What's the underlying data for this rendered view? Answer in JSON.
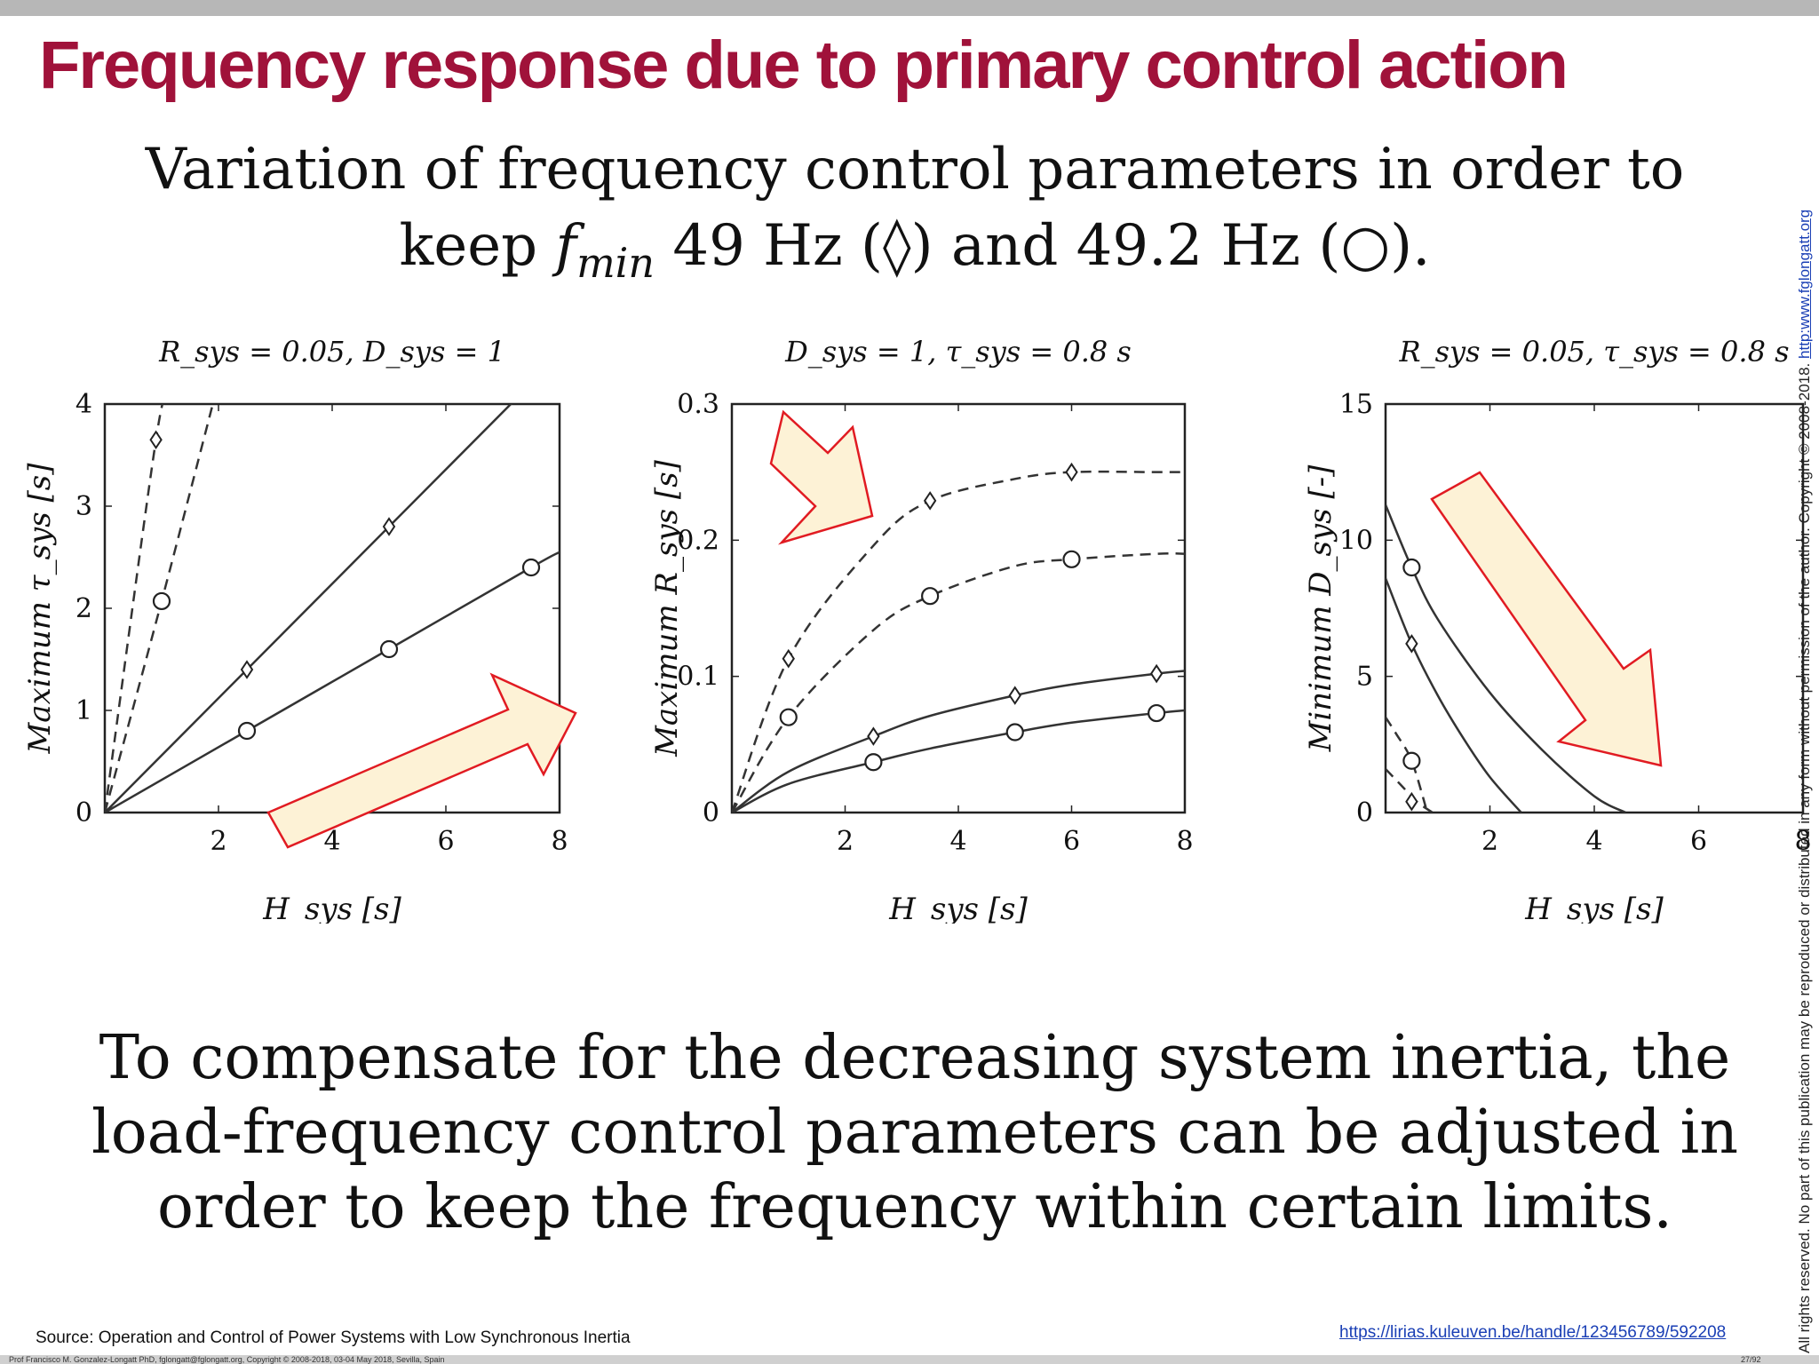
{
  "slide": {
    "title": "Frequency response due to primary control action",
    "subtitle_line1": "Variation of frequency control parameters in order to",
    "subtitle_keep": "keep",
    "subtitle_f": "f",
    "subtitle_sub": "min",
    "subtitle_rest": "49 Hz (◊) and 49.2 Hz (○).",
    "body": "To compensate for the decreasing system inertia, the load-frequency control parameters can be adjusted in order to keep the frequency within certain limits.",
    "source": "Source: Operation and Control of Power Systems with Low Synchronous Inertia",
    "link": "https://lirias.kuleuven.be/handle/123456789/592208",
    "footer": "Prof Francisco M. Gonzalez-Longatt PhD, fglongatt@fglongatt.org, Copyright © 2008-2018, 03-04 May 2018, Sevilla, Spain",
    "page": "27/92",
    "side_note": "All rights reserved. No part of this publication may be reproduced or distributed in any form without permission of the author. Copyright © 2008-2018.",
    "side_link": "http:www.fglongatt.org"
  },
  "colors": {
    "title": "#a0123a",
    "arrow_fill": "#fdf2d6",
    "arrow_stroke": "#e11b22",
    "line": "#333333"
  },
  "chart_data": [
    {
      "type": "line",
      "title": "R_sys = 0.05, D_sys = 1",
      "xlabel": "H_sys [s]",
      "ylabel": "Maximum τ_sys [s]",
      "xlim": [
        0,
        8
      ],
      "ylim": [
        0,
        4
      ],
      "xticks": [
        2,
        4,
        6,
        8
      ],
      "yticks": [
        0,
        1,
        2,
        3,
        4
      ],
      "arrow_direction": "up-right",
      "series": [
        {
          "marker": "diamond",
          "style": "solid",
          "x": [
            0,
            2.5,
            5,
            7.5
          ],
          "y": [
            0,
            1.4,
            2.8,
            4.2
          ]
        },
        {
          "marker": "circle",
          "style": "solid",
          "x": [
            0,
            2.5,
            5,
            7.5,
            8
          ],
          "y": [
            0,
            0.8,
            1.6,
            2.4,
            2.55
          ]
        },
        {
          "marker": "diamond",
          "style": "dashed",
          "x": [
            0,
            0.9,
            1.1
          ],
          "y": [
            0,
            3.65,
            4.0
          ]
        },
        {
          "marker": "circle",
          "style": "dashed",
          "x": [
            0,
            1.0,
            1.9
          ],
          "y": [
            0,
            2.07,
            4.0
          ]
        }
      ],
      "marker_points": [
        {
          "series": 0,
          "x": [
            2.5,
            5
          ],
          "y": [
            1.4,
            2.8
          ]
        },
        {
          "series": 1,
          "x": [
            2.5,
            5,
            7.5
          ],
          "y": [
            0.8,
            1.6,
            2.4
          ]
        },
        {
          "series": 2,
          "x": [
            0.9
          ],
          "y": [
            3.65
          ]
        },
        {
          "series": 3,
          "x": [
            1.0
          ],
          "y": [
            2.07
          ]
        }
      ]
    },
    {
      "type": "line",
      "title": "D_sys = 1, τ_sys = 0.8 s",
      "xlabel": "H_sys [s]",
      "ylabel": "Maximum R_sys [s]",
      "xlim": [
        0,
        8
      ],
      "ylim": [
        0,
        0.3
      ],
      "xticks": [
        2,
        4,
        6,
        8
      ],
      "yticks": [
        0,
        0.1,
        0.2,
        0.3
      ],
      "arrow_direction": "up-right",
      "series": [
        {
          "marker": "diamond",
          "style": "dashed",
          "x": [
            0,
            1,
            2.5,
            3.5,
            5,
            6,
            7.5,
            8
          ],
          "y": [
            0,
            0.113,
            0.196,
            0.229,
            0.245,
            0.25,
            0.25,
            0.25
          ]
        },
        {
          "marker": "circle",
          "style": "dashed",
          "x": [
            0,
            1,
            2.5,
            3.5,
            5,
            6,
            7.5,
            8
          ],
          "y": [
            0,
            0.07,
            0.134,
            0.159,
            0.181,
            0.186,
            0.19,
            0.19
          ]
        },
        {
          "marker": "diamond",
          "style": "solid",
          "x": [
            0,
            1,
            2.5,
            3.5,
            5,
            6,
            7.5,
            8
          ],
          "y": [
            0,
            0.03,
            0.056,
            0.071,
            0.086,
            0.094,
            0.102,
            0.104
          ]
        },
        {
          "marker": "circle",
          "style": "solid",
          "x": [
            0,
            1,
            2.5,
            3.5,
            5,
            6,
            7.5,
            8
          ],
          "y": [
            0,
            0.021,
            0.037,
            0.047,
            0.059,
            0.066,
            0.073,
            0.075
          ]
        }
      ],
      "marker_points": [
        {
          "series": 0,
          "x": [
            1,
            3.5,
            6
          ],
          "y": [
            0.113,
            0.229,
            0.25
          ]
        },
        {
          "series": 1,
          "x": [
            1,
            3.5,
            6
          ],
          "y": [
            0.07,
            0.159,
            0.186
          ]
        },
        {
          "series": 2,
          "x": [
            2.5,
            5,
            7.5
          ],
          "y": [
            0.056,
            0.086,
            0.102
          ]
        },
        {
          "series": 3,
          "x": [
            2.5,
            5,
            7.5
          ],
          "y": [
            0.037,
            0.059,
            0.073
          ]
        }
      ]
    },
    {
      "type": "line",
      "title": "R_sys = 0.05, τ_sys = 0.8 s",
      "xlabel": "H_sys [s]",
      "ylabel": "Minimum D_sys [-]",
      "xlim": [
        0,
        8
      ],
      "ylim": [
        0,
        15
      ],
      "xticks": [
        2,
        4,
        6,
        8
      ],
      "yticks": [
        0,
        5,
        10,
        15
      ],
      "arrow_direction": "down-right",
      "series": [
        {
          "marker": "circle",
          "style": "solid",
          "x": [
            0,
            0.5,
            1,
            2,
            3,
            4,
            4.6
          ],
          "y": [
            11.3,
            9.0,
            7.1,
            4.4,
            2.3,
            0.6,
            0
          ]
        },
        {
          "marker": "diamond",
          "style": "solid",
          "x": [
            0,
            0.5,
            1,
            1.5,
            2,
            2.6
          ],
          "y": [
            8.6,
            6.2,
            4.3,
            2.7,
            1.3,
            0
          ]
        },
        {
          "marker": "circle",
          "style": "dashed",
          "x": [
            0,
            0.2,
            0.5,
            0.8
          ],
          "y": [
            3.5,
            2.9,
            1.9,
            0
          ]
        },
        {
          "marker": "diamond",
          "style": "dashed",
          "x": [
            0,
            0.3,
            0.6,
            0.9
          ],
          "y": [
            1.6,
            1.0,
            0.4,
            0
          ]
        }
      ],
      "marker_points": [
        {
          "series": 0,
          "x": [
            0.5
          ],
          "y": [
            9.0
          ]
        },
        {
          "series": 1,
          "x": [
            0.5
          ],
          "y": [
            6.2
          ]
        },
        {
          "series": 2,
          "x": [
            0.5
          ],
          "y": [
            1.9
          ]
        },
        {
          "series": 3,
          "x": [
            0.5
          ],
          "y": [
            0.4
          ]
        }
      ]
    }
  ]
}
